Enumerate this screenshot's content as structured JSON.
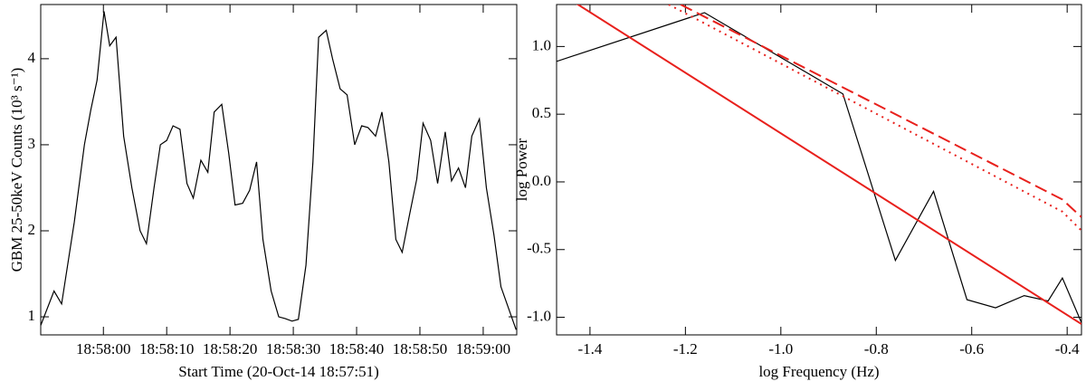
{
  "chart_data": [
    {
      "type": "line",
      "xlabel": "Start Time (20-Oct-14 18:57:51)",
      "ylabel": "GBM 25-50keV Counts (10³ s⁻¹)",
      "xlim": [
        -0.9,
        74.3
      ],
      "xticks": [
        {
          "value": 9,
          "label": "18:58:00"
        },
        {
          "value": 19,
          "label": "18:58:10"
        },
        {
          "value": 29,
          "label": "18:58:20"
        },
        {
          "value": 39,
          "label": "18:58:30"
        },
        {
          "value": 49,
          "label": "18:58:40"
        },
        {
          "value": 59,
          "label": "18:58:50"
        },
        {
          "value": 69,
          "label": "18:59:00"
        }
      ],
      "ylim": [
        0.79,
        4.63
      ],
      "yticks": [
        1,
        2,
        3,
        4
      ],
      "series": [
        {
          "color": "#000000",
          "dash": "solid",
          "x": [
            -0.9,
            1.2,
            2.4,
            4.4,
            6.0,
            7.0,
            8.0,
            9.1,
            10.0,
            11.0,
            12.2,
            13.5,
            14.8,
            15.8,
            17.0,
            18.0,
            19.0,
            20.0,
            21.1,
            22.2,
            23.2,
            24.4,
            25.5,
            26.5,
            27.7,
            28.8,
            29.8,
            31.0,
            32.1,
            33.2,
            34.2,
            35.5,
            36.7,
            37.7,
            38.8,
            39.8,
            41.0,
            42.1,
            43.0,
            44.2,
            45.2,
            46.4,
            47.5,
            48.7,
            49.8,
            50.8,
            52.0,
            53.0,
            54.1,
            55.2,
            56.2,
            57.4,
            58.5,
            59.5,
            60.7,
            61.8,
            63.0,
            64.0,
            65.1,
            66.2,
            67.2,
            68.4,
            69.5,
            70.7,
            71.8,
            73.0,
            74.2
          ],
          "values": [
            0.9,
            1.3,
            1.15,
            2.1,
            3.0,
            3.4,
            3.75,
            4.55,
            4.15,
            4.25,
            3.1,
            2.5,
            2.0,
            1.85,
            2.5,
            3.0,
            3.05,
            3.22,
            3.18,
            2.55,
            2.38,
            2.82,
            2.68,
            3.38,
            3.47,
            2.9,
            2.3,
            2.32,
            2.47,
            2.8,
            1.9,
            1.3,
            1.0,
            0.98,
            0.95,
            0.97,
            1.6,
            2.8,
            4.25,
            4.33,
            4.0,
            3.65,
            3.58,
            3.0,
            3.22,
            3.2,
            3.1,
            3.38,
            2.8,
            1.9,
            1.75,
            2.2,
            2.6,
            3.25,
            3.05,
            2.55,
            3.15,
            2.58,
            2.73,
            2.5,
            3.1,
            3.3,
            2.5,
            1.95,
            1.35,
            1.1,
            0.85
          ]
        }
      ]
    },
    {
      "type": "line",
      "xlabel": "log Frequency (Hz)",
      "ylabel": "log Power",
      "xlim": [
        -1.47,
        -0.37
      ],
      "xticks": [
        -1.4,
        -1.2,
        {
          "value": -1.0,
          "label": "-1.0"
        },
        -0.8,
        -0.6,
        -0.4
      ],
      "ylim": [
        -1.13,
        1.31
      ],
      "yticks": [
        {
          "value": -1.0,
          "label": "-1.0"
        },
        -0.5,
        {
          "value": 0.0,
          "label": "0.0"
        },
        0.5,
        {
          "value": 1.0,
          "label": "1.0"
        }
      ],
      "series": [
        {
          "color": "#000000",
          "dash": "solid",
          "x": [
            -1.47,
            -1.16,
            -0.87,
            -0.76,
            -0.68,
            -0.61,
            -0.55,
            -0.49,
            -0.44,
            -0.41,
            -0.37
          ],
          "values": [
            0.89,
            1.25,
            0.65,
            -0.58,
            -0.07,
            -0.87,
            -0.93,
            -0.84,
            -0.88,
            -0.71,
            -1.04
          ]
        },
        {
          "color": "#e8201c",
          "dash": "solid",
          "x": [
            -1.47,
            -0.37
          ],
          "values": [
            1.41,
            -1.05
          ]
        },
        {
          "color": "#e8201c",
          "dash": "dashed",
          "x": [
            -1.21,
            -0.41,
            -0.37
          ],
          "values": [
            1.31,
            -0.13,
            -0.26
          ]
        },
        {
          "color": "#e8201c",
          "dash": "dotted",
          "x": [
            -1.235,
            -0.41,
            -0.37
          ],
          "values": [
            1.31,
            -0.22,
            -0.36
          ]
        }
      ]
    }
  ]
}
